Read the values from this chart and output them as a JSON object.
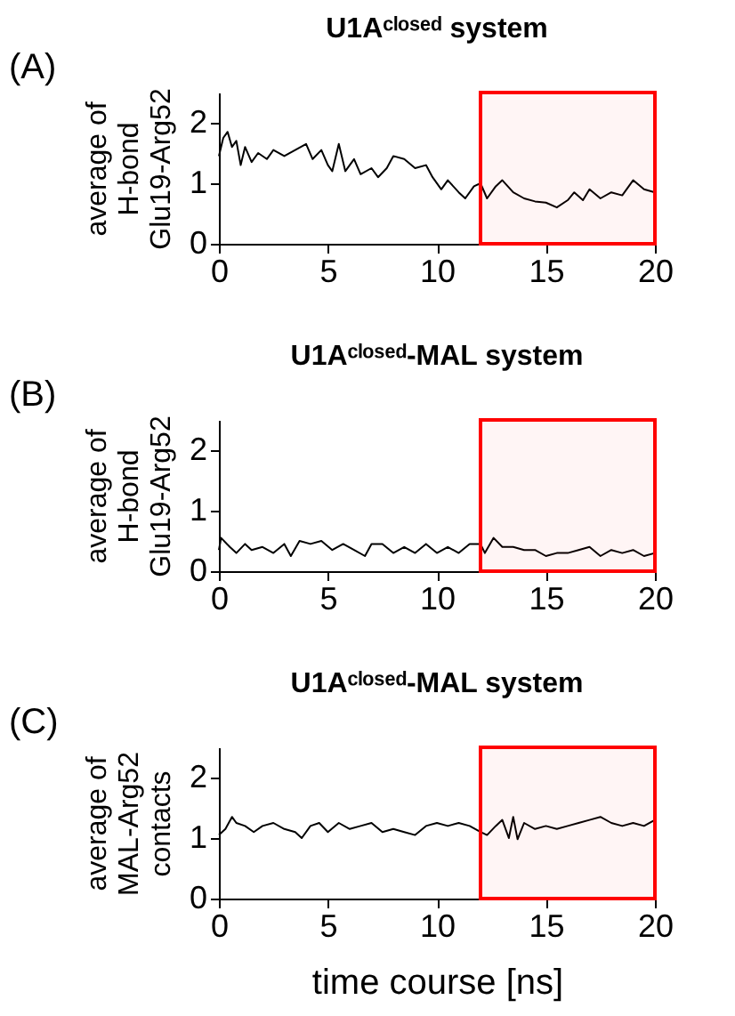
{
  "chart_data": [
    {
      "type": "line",
      "title": "U1Aᶜˡᵒˢᵉᵈ system",
      "ylabel": "average of\nH-bond\nGlu19-Arg52",
      "annotations": [
        "(A)"
      ],
      "xlim": [
        0,
        20
      ],
      "xticks": [
        0,
        5,
        10,
        15,
        20
      ],
      "ylim": [
        0,
        2.5
      ],
      "yticks": [
        0,
        1,
        2
      ],
      "bands": [
        {
          "axis": "x",
          "from": 12,
          "to": 20,
          "color": "#ff0000"
        }
      ],
      "series": [
        {
          "color": "#000000",
          "x": [
            0,
            0.2,
            0.4,
            0.6,
            0.8,
            1.0,
            1.2,
            1.5,
            1.8,
            2.2,
            2.5,
            3,
            3.5,
            4,
            4.3,
            4.7,
            5.0,
            5.2,
            5.5,
            5.8,
            6.2,
            6.5,
            7,
            7.3,
            7.7,
            8,
            8.5,
            9,
            9.5,
            9.8,
            10.2,
            10.5,
            11,
            11.3,
            11.7,
            12,
            12.3,
            12.7,
            13,
            13.5,
            14,
            14.5,
            15,
            15.5,
            16,
            16.3,
            16.7,
            17,
            17.5,
            18,
            18.5,
            19,
            19.5,
            20
          ],
          "values": [
            1.45,
            1.75,
            1.85,
            1.6,
            1.7,
            1.3,
            1.6,
            1.35,
            1.5,
            1.4,
            1.55,
            1.45,
            1.55,
            1.65,
            1.4,
            1.55,
            1.3,
            1.2,
            1.65,
            1.2,
            1.4,
            1.15,
            1.25,
            1.1,
            1.25,
            1.45,
            1.4,
            1.25,
            1.3,
            1.1,
            0.9,
            1.05,
            0.85,
            0.75,
            0.95,
            1.0,
            0.75,
            0.95,
            1.05,
            0.85,
            0.75,
            0.7,
            0.68,
            0.6,
            0.72,
            0.85,
            0.72,
            0.9,
            0.75,
            0.85,
            0.8,
            1.05,
            0.9,
            0.85
          ]
        }
      ]
    },
    {
      "type": "line",
      "title": "U1Aᶜˡᵒˢᵉᵈ-MAL system",
      "ylabel": "average of\nH-bond\nGlu19-Arg52",
      "annotations": [
        "(B)"
      ],
      "xlim": [
        0,
        20
      ],
      "xticks": [
        0,
        5,
        10,
        15,
        20
      ],
      "ylim": [
        0,
        2.5
      ],
      "yticks": [
        0,
        1,
        2
      ],
      "bands": [
        {
          "axis": "x",
          "from": 12,
          "to": 20,
          "color": "#ff0000"
        }
      ],
      "series": [
        {
          "color": "#000000",
          "x": [
            0,
            0.1,
            0.5,
            0.8,
            1.2,
            1.5,
            2,
            2.5,
            3,
            3.3,
            3.7,
            4.2,
            4.7,
            5.2,
            5.7,
            6.2,
            6.7,
            7,
            7.5,
            8,
            8.5,
            9,
            9.5,
            10,
            10.5,
            11,
            11.5,
            12,
            12.2,
            12.6,
            13,
            13.5,
            14,
            14.5,
            15,
            15.5,
            16,
            16.5,
            17,
            17.5,
            18,
            18.5,
            19,
            19.5,
            20
          ],
          "values": [
            0.35,
            0.55,
            0.4,
            0.3,
            0.45,
            0.35,
            0.4,
            0.3,
            0.45,
            0.25,
            0.5,
            0.45,
            0.5,
            0.35,
            0.45,
            0.35,
            0.25,
            0.45,
            0.45,
            0.3,
            0.4,
            0.3,
            0.45,
            0.3,
            0.4,
            0.3,
            0.45,
            0.45,
            0.3,
            0.55,
            0.4,
            0.4,
            0.35,
            0.35,
            0.25,
            0.3,
            0.3,
            0.35,
            0.4,
            0.25,
            0.35,
            0.3,
            0.35,
            0.25,
            0.3
          ]
        }
      ]
    },
    {
      "type": "line",
      "title": "U1Aᶜˡᵒˢᵉᵈ-MAL system",
      "ylabel": "average of\nMAL-Arg52\ncontacts",
      "xlabel": "time course [ns]",
      "annotations": [
        "(C)"
      ],
      "xlim": [
        0,
        20
      ],
      "xticks": [
        0,
        5,
        10,
        15,
        20
      ],
      "ylim": [
        0,
        2.5
      ],
      "yticks": [
        0,
        1,
        2
      ],
      "bands": [
        {
          "axis": "x",
          "from": 12,
          "to": 20,
          "color": "#ff0000"
        }
      ],
      "series": [
        {
          "color": "#000000",
          "x": [
            0,
            0.3,
            0.6,
            0.8,
            1.2,
            1.6,
            2,
            2.5,
            3,
            3.5,
            3.8,
            4.2,
            4.6,
            5,
            5.5,
            6,
            6.5,
            7,
            7.5,
            8,
            8.5,
            9,
            9.5,
            10,
            10.5,
            11,
            11.5,
            12,
            12.3,
            12.7,
            13,
            13.3,
            13.5,
            13.7,
            14,
            14.5,
            15,
            15.5,
            16,
            16.5,
            17,
            17.5,
            18,
            18.5,
            19,
            19.5,
            20
          ],
          "values": [
            1.05,
            1.15,
            1.35,
            1.25,
            1.2,
            1.1,
            1.2,
            1.25,
            1.15,
            1.1,
            1.0,
            1.2,
            1.25,
            1.1,
            1.25,
            1.15,
            1.2,
            1.25,
            1.1,
            1.15,
            1.1,
            1.05,
            1.2,
            1.25,
            1.2,
            1.25,
            1.2,
            1.1,
            1.05,
            1.2,
            1.3,
            1.0,
            1.35,
            0.98,
            1.25,
            1.15,
            1.2,
            1.15,
            1.2,
            1.25,
            1.3,
            1.35,
            1.25,
            1.2,
            1.25,
            1.2,
            1.3
          ]
        }
      ]
    }
  ]
}
